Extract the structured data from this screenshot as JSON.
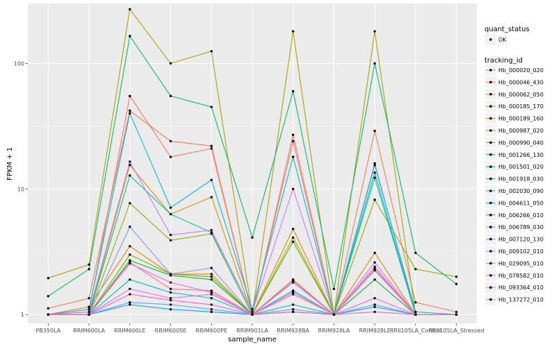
{
  "chart_data": {
    "type": "line",
    "xlabel": "sample_name",
    "ylabel": "FPKM + 1",
    "y_scale": "log10",
    "ylim": [
      0.85,
      300
    ],
    "y_ticks": [
      1,
      10,
      100
    ],
    "y_tick_labels": [
      "1",
      "10",
      "100"
    ],
    "grid": true,
    "legend_position": "right",
    "categories": [
      "PB350LA",
      "RRIM600LA",
      "RRIM600LE",
      "RRIM600SE",
      "RRIM600PE",
      "RRIM901LA",
      "RRIM928BA",
      "RRIM928LA",
      "RRIM928LE",
      "RRII105LA_Control",
      "RRII105LA_Stressed"
    ],
    "shape_legend": {
      "title": "quant_status",
      "items": [
        {
          "label": "OK"
        }
      ]
    },
    "color_legend_title": "tracking_id",
    "series": [
      {
        "name": "Hb_000020_020",
        "color": "#F8766D",
        "values": [
          1.0,
          1.05,
          55,
          18,
          21,
          1.0,
          27,
          1.0,
          16,
          1.0,
          1.0
        ]
      },
      {
        "name": "Hb_000046_430",
        "color": "#F07F52",
        "values": [
          1.12,
          1.35,
          42,
          24,
          22,
          1.0,
          24,
          1.0,
          29,
          1.25,
          1.05
        ]
      },
      {
        "name": "Hb_000062_050",
        "color": "#E58700",
        "values": [
          1.0,
          1.15,
          3.5,
          2.1,
          2.1,
          1.0,
          4.8,
          1.0,
          3.1,
          1.0,
          1.0
        ]
      },
      {
        "name": "Hb_000185_170",
        "color": "#D89000",
        "values": [
          1.0,
          1.0,
          15.5,
          6.3,
          8.6,
          1.0,
          1.9,
          1.0,
          2.4,
          1.0,
          1.0
        ]
      },
      {
        "name": "Hb_000189_160",
        "color": "#AEA200",
        "values": [
          1.95,
          2.5,
          270,
          100,
          125,
          1.0,
          180,
          1.0,
          180,
          1.0,
          1.0
        ]
      },
      {
        "name": "Hb_000987_020",
        "color": "#93AA00",
        "values": [
          1.0,
          1.0,
          7.7,
          3.9,
          4.4,
          1.0,
          4.1,
          1.0,
          8.2,
          2.3,
          2.0
        ]
      },
      {
        "name": "Hb_000990_040",
        "color": "#6BB100",
        "values": [
          1.0,
          1.0,
          3.0,
          2.1,
          2.0,
          1.0,
          3.8,
          1.0,
          2.3,
          1.0,
          1.0
        ]
      },
      {
        "name": "Hb_001266_130",
        "color": "#00BA38",
        "values": [
          1.0,
          1.0,
          2.7,
          2.05,
          1.9,
          1.0,
          1.55,
          1.0,
          1.9,
          1.0,
          1.0
        ]
      },
      {
        "name": "Hb_001501_020",
        "color": "#00BE67",
        "values": [
          1.4,
          2.3,
          165,
          55,
          45,
          4.1,
          60,
          1.6,
          100,
          3.1,
          1.75
        ]
      },
      {
        "name": "Hb_001918_030",
        "color": "#00C19A",
        "values": [
          1.0,
          1.0,
          12.8,
          6.3,
          4.5,
          1.0,
          1.2,
          1.0,
          12.3,
          1.0,
          1.0
        ]
      },
      {
        "name": "Hb_002030_090",
        "color": "#00BFC4",
        "values": [
          1.0,
          1.0,
          1.9,
          1.5,
          1.35,
          1.0,
          1.55,
          1.0,
          13.5,
          1.0,
          1.0
        ]
      },
      {
        "name": "Hb_004611_050",
        "color": "#00B8E7",
        "values": [
          1.0,
          1.1,
          40,
          7.1,
          11.8,
          1.1,
          18,
          1.0,
          15.5,
          1.05,
          1.0
        ]
      },
      {
        "name": "Hb_006266_010",
        "color": "#00A9FF",
        "values": [
          1.0,
          1.0,
          1.2,
          1.1,
          1.05,
          1.0,
          1.05,
          1.0,
          1.15,
          1.0,
          1.0
        ]
      },
      {
        "name": "Hb_006789_030",
        "color": "#619CFF",
        "values": [
          1.0,
          1.0,
          1.25,
          1.2,
          1.1,
          1.0,
          1.1,
          1.0,
          1.2,
          1.0,
          1.0
        ]
      },
      {
        "name": "Hb_007120_130",
        "color": "#8F91FF",
        "values": [
          1.0,
          1.0,
          5.0,
          2.1,
          2.35,
          1.0,
          1.8,
          1.0,
          2.3,
          1.0,
          1.0
        ]
      },
      {
        "name": "Hb_009102_010",
        "color": "#C77CFF",
        "values": [
          1.0,
          1.05,
          16.5,
          4.3,
          4.7,
          1.05,
          10,
          1.0,
          2.6,
          1.0,
          1.0
        ]
      },
      {
        "name": "Hb_029095_010",
        "color": "#E76BF3",
        "values": [
          1.0,
          1.0,
          1.6,
          1.35,
          1.45,
          1.0,
          1.5,
          1.0,
          1.35,
          1.0,
          1.0
        ]
      },
      {
        "name": "Hb_078582_010",
        "color": "#F564E3",
        "values": [
          1.0,
          1.0,
          2.55,
          1.8,
          1.5,
          1.0,
          1.85,
          1.0,
          2.25,
          1.0,
          1.0
        ]
      },
      {
        "name": "Hb_093364_010",
        "color": "#FF62BC",
        "values": [
          1.0,
          1.0,
          1.45,
          1.3,
          1.2,
          1.0,
          1.05,
          1.0,
          1.05,
          1.0,
          1.0
        ]
      },
      {
        "name": "Hb_137272_010",
        "color": "#FF6C90",
        "values": [
          1.0,
          1.0,
          2.6,
          1.6,
          1.55,
          1.0,
          1.45,
          1.0,
          2.4,
          1.0,
          1.0
        ]
      }
    ]
  }
}
